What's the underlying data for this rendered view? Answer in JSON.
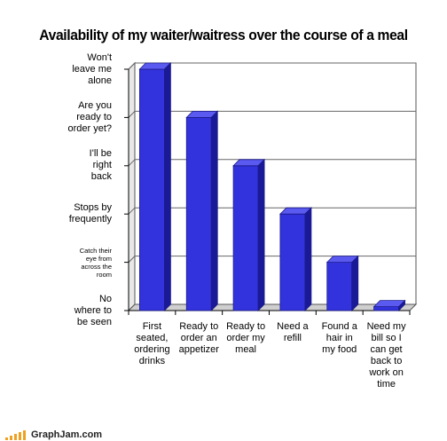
{
  "footer": {
    "site": "GraphJam.com"
  },
  "chart_data": {
    "type": "bar",
    "title": "Availability of my waiter/waitress over the course of a meal",
    "categories": [
      [
        "First",
        "seated,",
        "ordering",
        "drinks"
      ],
      [
        "Ready to",
        "order an",
        "appetizer"
      ],
      [
        "Ready to",
        "order my",
        "meal"
      ],
      [
        "Need a",
        "refill"
      ],
      [
        "Found a",
        "hair in",
        "my food"
      ],
      [
        "Need my",
        "bill so I",
        "can get",
        "back to",
        "work on",
        "time"
      ]
    ],
    "values": [
      5,
      4,
      3,
      2,
      1,
      0.08
    ],
    "ylim": [
      0,
      5
    ],
    "yticks": [
      {
        "value": 0,
        "lines": [
          "No",
          "where to",
          "be seen"
        ],
        "small": false
      },
      {
        "value": 1,
        "lines": [
          "Catch their",
          "eye from",
          "across the",
          "room"
        ],
        "small": true
      },
      {
        "value": 2,
        "lines": [
          "Stops by",
          "frequently"
        ],
        "small": false
      },
      {
        "value": 3,
        "lines": [
          "I'll be",
          "right",
          "back"
        ],
        "small": false
      },
      {
        "value": 4,
        "lines": [
          "Are you",
          "ready to",
          "order yet?"
        ],
        "small": false
      },
      {
        "value": 5,
        "lines": [
          "Won't",
          "leave me",
          "alone"
        ],
        "small": false
      }
    ],
    "bar_color": "#3333dd",
    "bar_top_color": "#5a5af0",
    "bar_side_color": "#1a1a99",
    "grid": true,
    "legend": "none"
  }
}
